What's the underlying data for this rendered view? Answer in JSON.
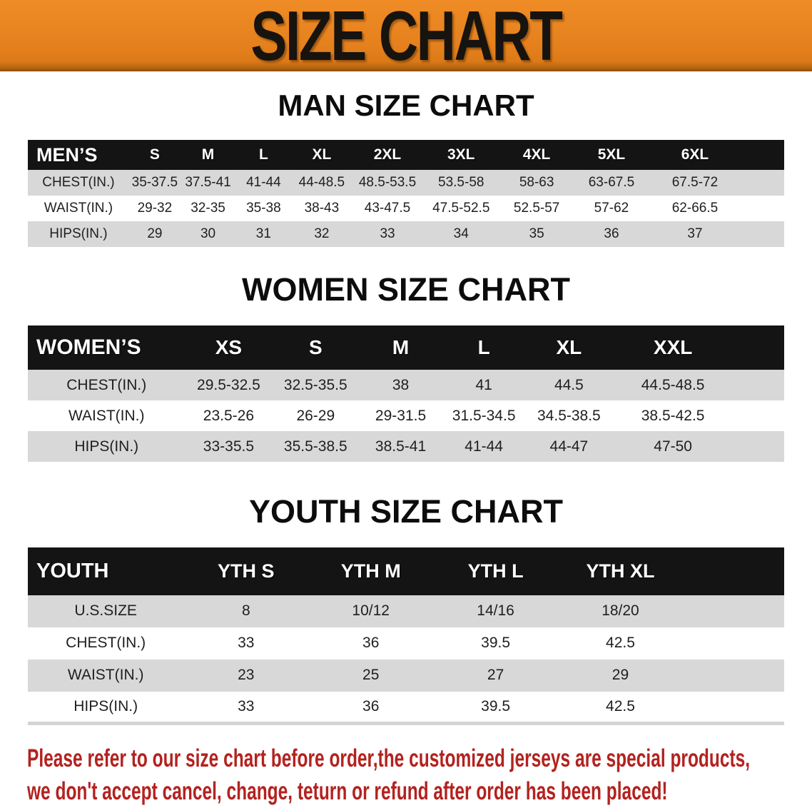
{
  "banner": {
    "title": "SIZE CHART"
  },
  "sections": [
    {
      "title": "MAN SIZE CHART",
      "corner": "MEN’S",
      "columns": [
        "S",
        "M",
        "L",
        "XL",
        "2XL",
        "3XL",
        "4XL",
        "5XL",
        "6XL"
      ],
      "rows": [
        {
          "label": "CHEST(IN.)",
          "values": [
            "35-37.5",
            "37.5-41",
            "41-44",
            "44-48.5",
            "48.5-53.5",
            "53.5-58",
            "58-63",
            "63-67.5",
            "67.5-72"
          ]
        },
        {
          "label": "WAIST(IN.)",
          "values": [
            "29-32",
            "32-35",
            "35-38",
            "38-43",
            "43-47.5",
            "47.5-52.5",
            "52.5-57",
            "57-62",
            "62-66.5"
          ]
        },
        {
          "label": "HIPS(IN.)",
          "values": [
            "29",
            "30",
            "31",
            "32",
            "33",
            "34",
            "35",
            "36",
            "37"
          ]
        }
      ]
    },
    {
      "title": "WOMEN SIZE CHART",
      "corner": "WOMEN’S",
      "columns": [
        "XS",
        "S",
        "M",
        "L",
        "XL",
        "XXL"
      ],
      "rows": [
        {
          "label": "CHEST(IN.)",
          "values": [
            "29.5-32.5",
            "32.5-35.5",
            "38",
            "41",
            "44.5",
            "44.5-48.5"
          ]
        },
        {
          "label": "WAIST(IN.)",
          "values": [
            "23.5-26",
            "26-29",
            "29-31.5",
            "31.5-34.5",
            "34.5-38.5",
            "38.5-42.5"
          ]
        },
        {
          "label": "HIPS(IN.)",
          "values": [
            "33-35.5",
            "35.5-38.5",
            "38.5-41",
            "41-44",
            "44-47",
            "47-50"
          ]
        }
      ]
    },
    {
      "title": "YOUTH SIZE CHART",
      "corner": "YOUTH",
      "columns": [
        "YTH S",
        "YTH M",
        "YTH L",
        "YTH XL"
      ],
      "rows": [
        {
          "label": "U.S.SIZE",
          "values": [
            "8",
            "10/12",
            "14/16",
            "18/20"
          ]
        },
        {
          "label": "CHEST(IN.)",
          "values": [
            "33",
            "36",
            "39.5",
            "42.5"
          ]
        },
        {
          "label": "WAIST(IN.)",
          "values": [
            "23",
            "25",
            "27",
            "29"
          ]
        },
        {
          "label": "HIPS(IN.)",
          "values": [
            "33",
            "36",
            "39.5",
            "42.5"
          ]
        }
      ]
    }
  ],
  "disclaimer": {
    "line1": "Please refer to our size chart before order,the customized jerseys are special products,",
    "line2": "we don't accept cancel, change, teturn or refund after order has been placed!"
  },
  "colors": {
    "banner_orange": "#e6821e",
    "header_black": "#141414",
    "row_gray": "#d8d8d8",
    "disclaimer_red": "#b3221f"
  }
}
